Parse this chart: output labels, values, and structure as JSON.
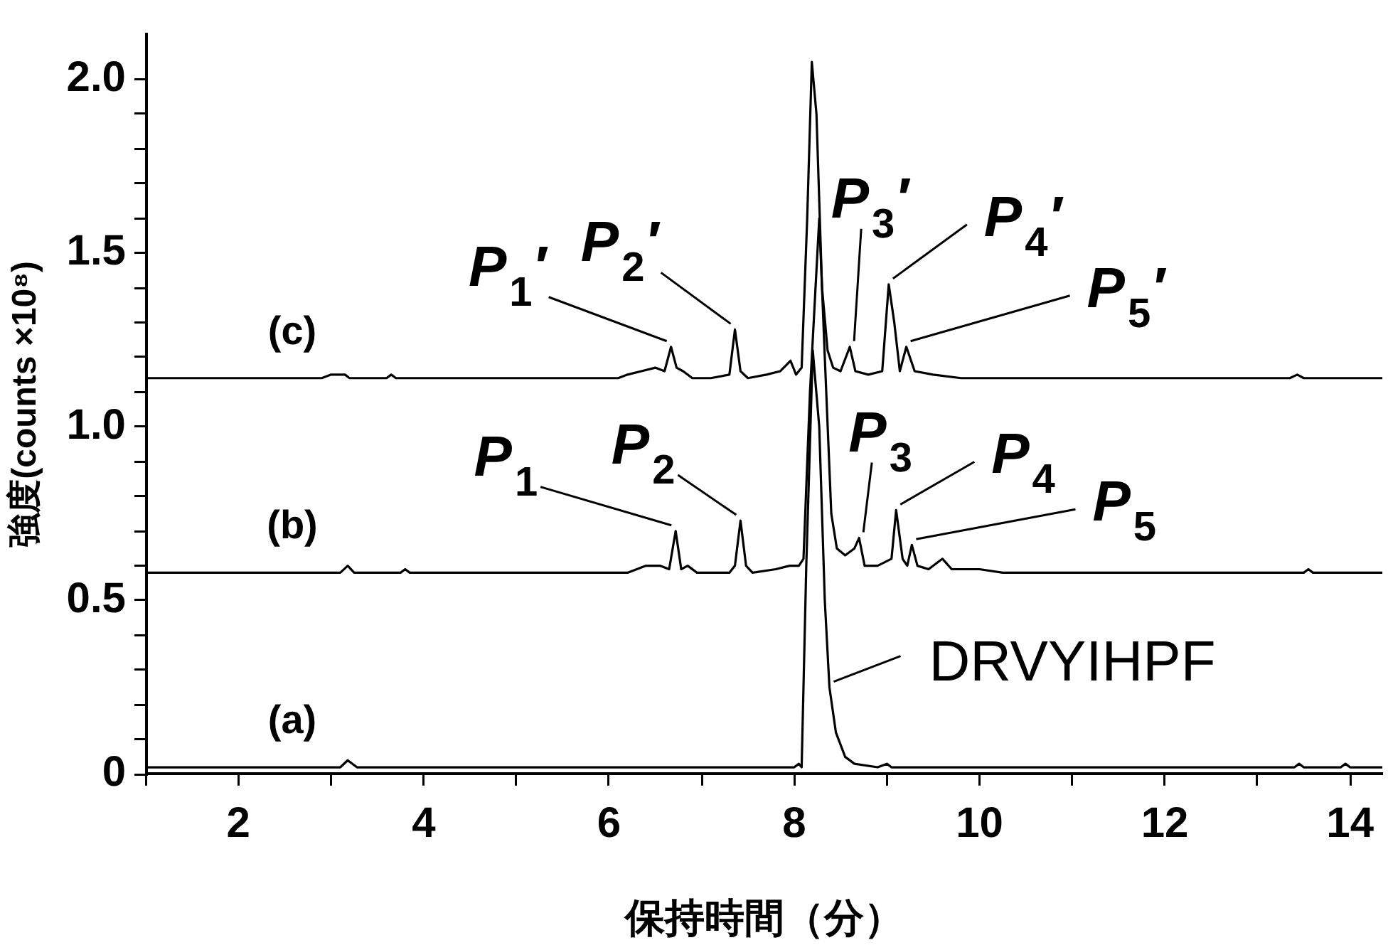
{
  "chart_data": {
    "type": "line",
    "xlabel": "保持時間（分）",
    "ylabel": "強度(counts ×10⁸)",
    "xlim": [
      1,
      14.35
    ],
    "ylim": [
      0,
      2.13
    ],
    "xticks": [
      {
        "value": 1,
        "label": null
      },
      2,
      {
        "value": 3,
        "label": null
      },
      4,
      {
        "value": 5,
        "label": null
      },
      6,
      {
        "value": 7,
        "label": null
      },
      8,
      {
        "value": 9,
        "label": null
      },
      10,
      {
        "value": 11,
        "label": null
      },
      12,
      {
        "value": 13,
        "label": null
      },
      14
    ],
    "yticks": [
      {
        "value": 0,
        "label": "0"
      },
      {
        "value": 0.1,
        "label": null
      },
      {
        "value": 0.2,
        "label": null
      },
      {
        "value": 0.3,
        "label": null
      },
      {
        "value": 0.4,
        "label": null
      },
      {
        "value": 0.5,
        "label": "0.5"
      },
      {
        "value": 0.6,
        "label": null
      },
      {
        "value": 0.7,
        "label": null
      },
      {
        "value": 0.8,
        "label": null
      },
      {
        "value": 0.9,
        "label": null
      },
      {
        "value": 1.0,
        "label": "1.0"
      },
      {
        "value": 1.1,
        "label": null
      },
      {
        "value": 1.2,
        "label": null
      },
      {
        "value": 1.3,
        "label": null
      },
      {
        "value": 1.4,
        "label": null
      },
      {
        "value": 1.5,
        "label": "1.5"
      },
      {
        "value": 1.6,
        "label": null
      },
      {
        "value": 1.7,
        "label": null
      },
      {
        "value": 1.8,
        "label": null
      },
      {
        "value": 1.9,
        "label": null
      },
      {
        "value": 2.0,
        "label": "2.0"
      }
    ],
    "grid": false,
    "legend": false,
    "series": [
      {
        "name": "(a)",
        "color": "#000000",
        "x": [
          1,
          3.1,
          3.18,
          3.28,
          8.0,
          8.05,
          8.08,
          8.13,
          8.2,
          8.27,
          8.33,
          8.38,
          8.45,
          8.55,
          8.65,
          8.9,
          9.0,
          9.05,
          13.4,
          13.45,
          13.5,
          13.9,
          13.95,
          14.0,
          14.35
        ],
        "values": [
          0.02,
          0.02,
          0.04,
          0.02,
          0.02,
          0.03,
          0.02,
          0.6,
          1.22,
          1.0,
          0.5,
          0.25,
          0.12,
          0.05,
          0.03,
          0.02,
          0.03,
          0.02,
          0.02,
          0.03,
          0.02,
          0.02,
          0.03,
          0.02,
          0.02
        ]
      },
      {
        "name": "(b)",
        "color": "#000000",
        "x": [
          1,
          3.1,
          3.18,
          3.25,
          3.75,
          3.8,
          3.85,
          6.2,
          6.4,
          6.55,
          6.65,
          6.72,
          6.78,
          6.85,
          6.95,
          7.3,
          7.36,
          7.42,
          7.48,
          7.55,
          7.8,
          7.95,
          8.05,
          8.1,
          8.17,
          8.27,
          8.33,
          8.4,
          8.46,
          8.55,
          8.65,
          8.7,
          8.76,
          8.9,
          9.05,
          9.1,
          9.17,
          9.22,
          9.27,
          9.33,
          9.45,
          9.6,
          9.7,
          10.0,
          10.25,
          13.5,
          13.55,
          13.6,
          14.35
        ],
        "values": [
          0.58,
          0.58,
          0.6,
          0.58,
          0.58,
          0.59,
          0.58,
          0.58,
          0.6,
          0.6,
          0.59,
          0.7,
          0.59,
          0.6,
          0.58,
          0.58,
          0.6,
          0.73,
          0.6,
          0.58,
          0.59,
          0.6,
          0.6,
          0.62,
          1.1,
          1.6,
          1.2,
          0.75,
          0.65,
          0.63,
          0.65,
          0.68,
          0.6,
          0.6,
          0.62,
          0.76,
          0.62,
          0.6,
          0.66,
          0.6,
          0.59,
          0.62,
          0.59,
          0.59,
          0.58,
          0.58,
          0.59,
          0.58,
          0.58
        ]
      },
      {
        "name": "(c)",
        "color": "#000000",
        "x": [
          1,
          2.9,
          3.0,
          3.15,
          3.2,
          3.6,
          3.65,
          3.7,
          6.1,
          6.2,
          6.35,
          6.5,
          6.6,
          6.67,
          6.73,
          6.8,
          6.9,
          7.1,
          7.3,
          7.36,
          7.42,
          7.5,
          7.7,
          7.85,
          7.96,
          8.02,
          8.08,
          8.14,
          8.19,
          8.24,
          8.3,
          8.36,
          8.42,
          8.5,
          8.6,
          8.66,
          8.8,
          8.95,
          9.02,
          9.08,
          9.14,
          9.21,
          9.3,
          9.5,
          9.8,
          10.2,
          13.35,
          13.43,
          13.5,
          14.35
        ],
        "values": [
          1.14,
          1.14,
          1.15,
          1.15,
          1.14,
          1.14,
          1.15,
          1.14,
          1.14,
          1.15,
          1.16,
          1.17,
          1.16,
          1.23,
          1.17,
          1.16,
          1.14,
          1.14,
          1.15,
          1.28,
          1.16,
          1.14,
          1.15,
          1.16,
          1.19,
          1.15,
          1.17,
          1.6,
          2.05,
          1.9,
          1.4,
          1.22,
          1.17,
          1.16,
          1.23,
          1.16,
          1.15,
          1.16,
          1.41,
          1.3,
          1.16,
          1.23,
          1.16,
          1.15,
          1.14,
          1.14,
          1.14,
          1.15,
          1.14,
          1.14
        ]
      }
    ],
    "annotations": [
      {
        "text": "P$_{1}$′",
        "x": 6.67,
        "y": 1.23
      },
      {
        "text": "P$_{2}$′",
        "x": 7.36,
        "y": 1.28
      },
      {
        "text": "P$_{3}$′",
        "x": 8.6,
        "y": 1.23
      },
      {
        "text": "P$_{4}$′",
        "x": 9.02,
        "y": 1.41
      },
      {
        "text": "P$_{5}$′",
        "x": 9.21,
        "y": 1.23
      },
      {
        "text": "P$_{1}$",
        "x": 6.72,
        "y": 0.7
      },
      {
        "text": "P$_{2}$",
        "x": 7.42,
        "y": 0.73
      },
      {
        "text": "P$_{3}$",
        "x": 8.7,
        "y": 0.68
      },
      {
        "text": "P$_{4}$",
        "x": 9.1,
        "y": 0.76
      },
      {
        "text": "P$_{5}$",
        "x": 9.27,
        "y": 0.66
      },
      {
        "text": "DRVYIHPF",
        "x": 8.38,
        "y": 0.25
      }
    ]
  }
}
